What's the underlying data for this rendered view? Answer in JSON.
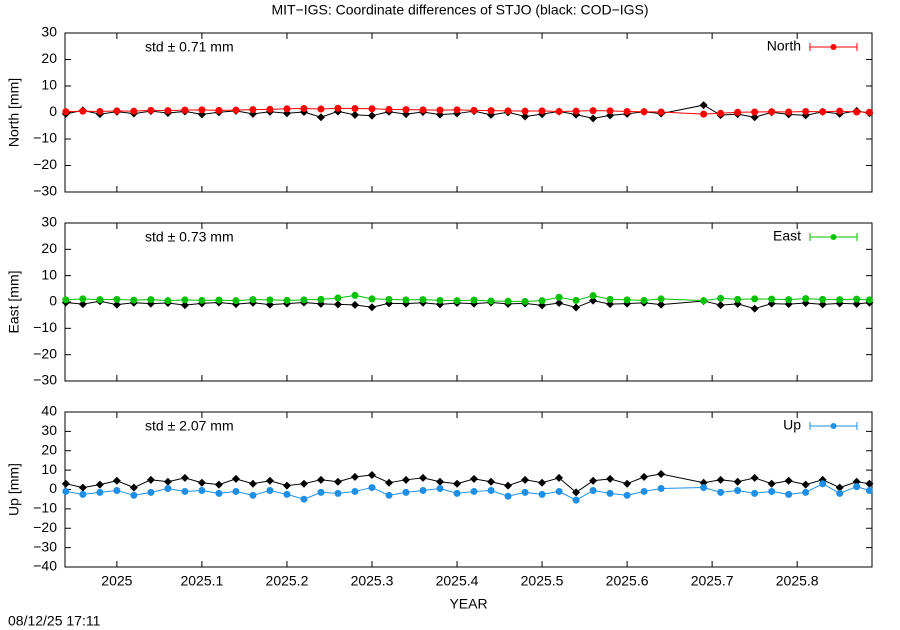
{
  "title": "MIT−IGS: Coordinate differences of STJO (black: COD−IGS)",
  "timestamp": "08/12/25 17:11",
  "chart_data": [
    {
      "type": "line",
      "ylabel": "North [mm]",
      "annotation": "std ± 0.71 mm",
      "annotation_color": "#ff0000",
      "legend": "top-right",
      "x": [
        2024.94,
        2024.96,
        2024.98,
        2025.0,
        2025.02,
        2025.04,
        2025.06,
        2025.08,
        2025.1,
        2025.12,
        2025.14,
        2025.16,
        2025.18,
        2025.2,
        2025.22,
        2025.24,
        2025.26,
        2025.28,
        2025.3,
        2025.32,
        2025.34,
        2025.36,
        2025.38,
        2025.4,
        2025.42,
        2025.44,
        2025.46,
        2025.48,
        2025.5,
        2025.52,
        2025.54,
        2025.56,
        2025.58,
        2025.6,
        2025.62,
        2025.64,
        2025.69,
        2025.71,
        2025.73,
        2025.75,
        2025.77,
        2025.79,
        2025.81,
        2025.83,
        2025.85,
        2025.87,
        2025.885
      ],
      "xlim": [
        2024.939,
        2025.888
      ],
      "xticks": [
        2025,
        2025.1,
        2025.2,
        2025.3,
        2025.4,
        2025.5,
        2025.6,
        2025.7,
        2025.8
      ],
      "ylim": [
        -30,
        30
      ],
      "yticks": [
        {
          "value": -30,
          "label": "−30"
        },
        {
          "value": -20,
          "label": "−20"
        },
        {
          "value": -10,
          "label": "−10"
        },
        0,
        10,
        20,
        30
      ],
      "series": [
        {
          "color": "#000000",
          "marker": "diamond",
          "values": [
            -0.5,
            0.8,
            -0.6,
            0.3,
            -0.4,
            0.5,
            -0.2,
            0.4,
            -0.7,
            0.1,
            0.6,
            -0.5,
            0.3,
            -0.3,
            0.2,
            -1.8,
            0.4,
            -0.9,
            -1.2,
            0.3,
            -0.6,
            0.2,
            -0.8,
            -0.4,
            0.5,
            -0.9,
            0.1,
            -1.5,
            -0.6,
            0.4,
            -0.8,
            -2.2,
            -1.1,
            -0.5,
            0.3,
            -0.4,
            2.8,
            -1.0,
            -0.6,
            -1.8,
            0.1,
            -0.7,
            -1.1,
            0.3,
            -0.5,
            0.6,
            -0.3
          ]
        },
        {
          "name": "North",
          "color": "#ff0000",
          "marker": "circle",
          "values": [
            0.3,
            0.5,
            0.4,
            0.6,
            0.5,
            0.8,
            0.7,
            0.9,
            1.0,
            0.8,
            0.9,
            1.1,
            1.2,
            1.4,
            1.5,
            1.3,
            1.6,
            1.5,
            1.4,
            1.2,
            1.1,
            1.0,
            0.9,
            1.0,
            0.8,
            0.7,
            0.6,
            0.5,
            0.6,
            0.4,
            0.5,
            0.7,
            0.6,
            0.4,
            0.3,
            0.2,
            -0.6,
            -0.3,
            0.1,
            0.2,
            0.3,
            0.2,
            0.4,
            0.3,
            0.5,
            0.2,
            0.1
          ]
        }
      ]
    },
    {
      "type": "line",
      "ylabel": "East [mm]",
      "annotation": "std ± 0.73 mm",
      "annotation_color": "#00c000",
      "legend": "top-right",
      "x": [
        2024.94,
        2024.96,
        2024.98,
        2025.0,
        2025.02,
        2025.04,
        2025.06,
        2025.08,
        2025.1,
        2025.12,
        2025.14,
        2025.16,
        2025.18,
        2025.2,
        2025.22,
        2025.24,
        2025.26,
        2025.28,
        2025.3,
        2025.32,
        2025.34,
        2025.36,
        2025.38,
        2025.4,
        2025.42,
        2025.44,
        2025.46,
        2025.48,
        2025.5,
        2025.52,
        2025.54,
        2025.56,
        2025.58,
        2025.6,
        2025.62,
        2025.64,
        2025.69,
        2025.71,
        2025.73,
        2025.75,
        2025.77,
        2025.79,
        2025.81,
        2025.83,
        2025.85,
        2025.87,
        2025.885
      ],
      "xlim": [
        2024.939,
        2025.888
      ],
      "xticks": [
        2025,
        2025.1,
        2025.2,
        2025.3,
        2025.4,
        2025.5,
        2025.6,
        2025.7,
        2025.8
      ],
      "ylim": [
        -30,
        30
      ],
      "yticks": [
        {
          "value": -30,
          "label": "−30"
        },
        {
          "value": -20,
          "label": "−20"
        },
        {
          "value": -10,
          "label": "−10"
        },
        0,
        10,
        20,
        30
      ],
      "series": [
        {
          "color": "#000000",
          "marker": "diamond",
          "values": [
            -0.2,
            -0.8,
            0.3,
            -1.0,
            -0.3,
            -0.6,
            -0.4,
            -1.2,
            -0.5,
            -0.2,
            -0.8,
            -0.3,
            -1.0,
            -0.6,
            -0.2,
            -0.7,
            -0.9,
            -1.1,
            -2.0,
            -0.5,
            -0.6,
            -0.3,
            -0.9,
            -0.4,
            -0.6,
            -0.2,
            -0.7,
            -0.5,
            -1.3,
            -0.4,
            -2.1,
            0.5,
            -0.8,
            -0.6,
            -0.3,
            -1.0,
            0.4,
            -1.2,
            -0.7,
            -2.5,
            -0.6,
            -0.8,
            -0.4,
            -0.9,
            -0.5,
            -0.7,
            -0.3
          ]
        },
        {
          "name": "East",
          "color": "#00c000",
          "marker": "circle",
          "values": [
            0.8,
            1.2,
            0.9,
            1.0,
            0.7,
            0.9,
            0.5,
            0.8,
            0.6,
            0.7,
            0.5,
            0.9,
            0.8,
            0.6,
            0.8,
            1.0,
            1.5,
            2.5,
            1.2,
            1.0,
            0.8,
            0.9,
            0.6,
            0.5,
            0.7,
            0.4,
            0.3,
            0.2,
            0.5,
            1.8,
            0.6,
            2.4,
            1.0,
            0.8,
            0.6,
            1.2,
            0.5,
            1.4,
            1.0,
            1.2,
            1.1,
            0.9,
            1.3,
            1.0,
            0.9,
            1.1,
            0.8
          ]
        }
      ]
    },
    {
      "type": "line",
      "ylabel": "Up [mm]",
      "xlabel": "YEAR",
      "annotation": "std ± 2.07 mm",
      "annotation_color": "#1e8fe6",
      "legend": "top-right",
      "x": [
        2024.94,
        2024.96,
        2024.98,
        2025.0,
        2025.02,
        2025.04,
        2025.06,
        2025.08,
        2025.1,
        2025.12,
        2025.14,
        2025.16,
        2025.18,
        2025.2,
        2025.22,
        2025.24,
        2025.26,
        2025.28,
        2025.3,
        2025.32,
        2025.34,
        2025.36,
        2025.38,
        2025.4,
        2025.42,
        2025.44,
        2025.46,
        2025.48,
        2025.5,
        2025.52,
        2025.54,
        2025.56,
        2025.58,
        2025.6,
        2025.62,
        2025.64,
        2025.69,
        2025.71,
        2025.73,
        2025.75,
        2025.77,
        2025.79,
        2025.81,
        2025.83,
        2025.85,
        2025.87,
        2025.885
      ],
      "xlim": [
        2024.939,
        2025.888
      ],
      "xticks": [
        2025,
        2025.1,
        2025.2,
        2025.3,
        2025.4,
        2025.5,
        2025.6,
        2025.7,
        2025.8
      ],
      "ylim": [
        -40,
        40
      ],
      "yticks": [
        {
          "value": -40,
          "label": "−40"
        },
        {
          "value": -30,
          "label": "−30"
        },
        {
          "value": -20,
          "label": "−20"
        },
        {
          "value": -10,
          "label": "−10"
        },
        0,
        10,
        20,
        30,
        40
      ],
      "series": [
        {
          "color": "#000000",
          "marker": "diamond",
          "values": [
            3.0,
            1.0,
            2.5,
            4.5,
            1.0,
            5.0,
            4.0,
            6.0,
            3.5,
            2.5,
            5.5,
            3.0,
            4.5,
            2.0,
            3.0,
            5.0,
            4.0,
            6.5,
            7.5,
            3.5,
            5.0,
            6.0,
            4.0,
            3.0,
            5.5,
            4.0,
            2.0,
            5.0,
            3.5,
            6.0,
            -1.5,
            4.5,
            5.5,
            3.0,
            6.5,
            8.0,
            3.5,
            5.0,
            4.0,
            6.0,
            3.0,
            4.5,
            2.5,
            5.0,
            1.0,
            4.0,
            3.0
          ]
        },
        {
          "name": "Up",
          "color": "#1e8fe6",
          "marker": "circle",
          "values": [
            -1.0,
            -2.5,
            -1.5,
            -0.5,
            -3.0,
            -1.5,
            0.5,
            -1.0,
            -0.5,
            -2.0,
            -1.0,
            -3.0,
            -0.5,
            -2.5,
            -5.0,
            -1.5,
            -2.0,
            -1.0,
            1.0,
            -3.0,
            -1.5,
            -0.5,
            0.5,
            -2.0,
            -1.0,
            -0.5,
            -3.5,
            -1.5,
            -2.5,
            -1.0,
            -5.5,
            -0.5,
            -2.0,
            -3.0,
            -1.0,
            0.5,
            1.0,
            -1.5,
            -0.5,
            -2.0,
            -1.0,
            -2.5,
            -1.5,
            3.0,
            -2.0,
            1.5,
            -0.5
          ]
        }
      ]
    }
  ]
}
